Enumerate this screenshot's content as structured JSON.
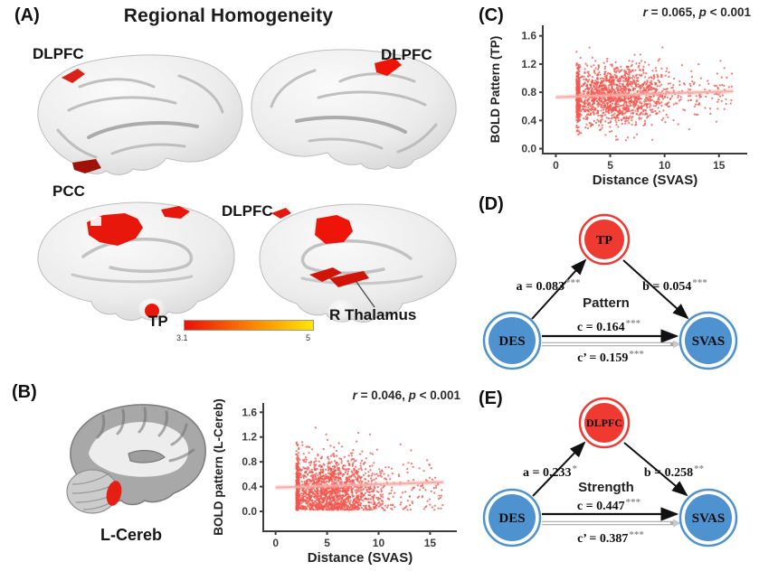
{
  "figure": {
    "panelA": {
      "letter": "(A)",
      "title": "Regional Homogeneity",
      "label_dlpfc_left": "DLPFC",
      "label_dlpfc_right": "DLPFC",
      "label_pcc": "PCC",
      "label_dlpfc_medial": "DLPFC",
      "label_tp": "TP",
      "label_thalamus": "R Thalamus",
      "colorbar": {
        "min": "3.1",
        "max": "5",
        "gradient": [
          "#ec1007",
          "#fd8903",
          "#ffe502"
        ]
      }
    },
    "panelB": {
      "letter": "(B)",
      "region_label": "L-Cereb"
    },
    "panelC": {
      "letter": "(C)"
    },
    "panelD": {
      "letter": "(D)",
      "mediator": "TP",
      "predictor": "DES",
      "outcome": "SVAS",
      "model_label": "Pattern",
      "path_a": "a = 0.083",
      "path_a_stars": "***",
      "path_b": "b = 0.054",
      "path_b_stars": "***",
      "path_c": "c = 0.164",
      "path_c_stars": "***",
      "path_cp": "c’ = 0.159",
      "path_cp_stars": "***",
      "mediator_color": "#ee3a31",
      "xy_color": "#4e93d0"
    },
    "panelE": {
      "letter": "(E)",
      "mediator": "DLPFC",
      "predictor": "DES",
      "outcome": "SVAS",
      "model_label": "Strength",
      "path_a": "a = 0.233",
      "path_a_stars": "*",
      "path_b": "b = 0.258",
      "path_b_stars": "**",
      "path_c": "c = 0.447",
      "path_c_stars": "***",
      "path_cp": "c’ = 0.387",
      "path_cp_stars": "***",
      "mediator_color": "#ee3a31",
      "xy_color": "#4e93d0"
    }
  },
  "chart_data": [
    {
      "id": "C",
      "type": "scatter",
      "xlabel": "Distance (SVAS)",
      "ylabel": "BOLD Pattern (TP)",
      "annotation": {
        "r_sym": "r",
        "mid": " = 0.065, ",
        "p_sym": "p",
        "tail": " < 0.001"
      },
      "r": 0.065,
      "p": "< 0.001",
      "xticks": [
        0,
        5,
        10,
        15
      ],
      "yticks": [
        0.0,
        0.4,
        0.8,
        1.2,
        1.6
      ],
      "xlim": [
        -1.2,
        17.6
      ],
      "ylim": [
        -0.07,
        1.75
      ],
      "regression": {
        "x": [
          0,
          16.3
        ],
        "y": [
          0.73,
          0.815
        ]
      },
      "cloud": {
        "n": 1500,
        "x_mean": 5.3,
        "x_sd": 2.5,
        "x_min": 1.9,
        "x_max": 16.3,
        "y_mean": 0.76,
        "y_sd": 0.2,
        "y_min": 0.1,
        "y_max": 1.44,
        "band_n": 150,
        "tail_n": 110,
        "seed": 7
      },
      "point_color": "#f4564e",
      "line_color": "#f8aca6",
      "grid": false,
      "legend": false
    },
    {
      "id": "B",
      "type": "scatter",
      "xlabel": "Distance (SVAS)",
      "ylabel": "BOLD pattern (L-Cereb)",
      "annotation": {
        "r_sym": "r",
        "mid": " = 0.046, ",
        "p_sym": "p",
        "tail": " < 0.001"
      },
      "r": 0.046,
      "p": "< 0.001",
      "xticks": [
        0,
        5,
        10,
        15
      ],
      "yticks": [
        0.0,
        0.4,
        0.8,
        1.2,
        1.6
      ],
      "xlim": [
        -1.2,
        17.6
      ],
      "ylim": [
        -0.32,
        1.75
      ],
      "regression": {
        "x": [
          0,
          16.3
        ],
        "y": [
          0.385,
          0.47
        ]
      },
      "cloud": {
        "n": 1700,
        "x_mean": 5.2,
        "x_sd": 2.5,
        "x_min": 2.0,
        "x_max": 16.3,
        "y_mean": 0.33,
        "y_sd": 0.28,
        "y_min": 0.02,
        "y_max": 1.48,
        "band_n": 170,
        "tail_n": 120,
        "seed": 21
      },
      "point_color": "#f4564e",
      "line_color": "#f8aca6",
      "grid": false,
      "legend": false
    }
  ]
}
